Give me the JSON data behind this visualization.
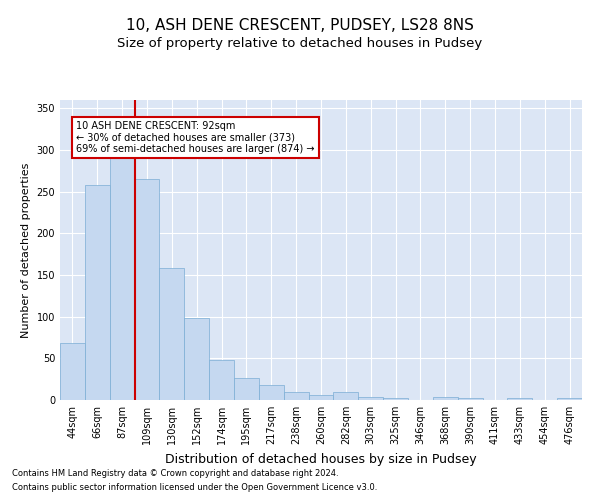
{
  "title": "10, ASH DENE CRESCENT, PUDSEY, LS28 8NS",
  "subtitle": "Size of property relative to detached houses in Pudsey",
  "xlabel": "Distribution of detached houses by size in Pudsey",
  "ylabel": "Number of detached properties",
  "footnote1": "Contains HM Land Registry data © Crown copyright and database right 2024.",
  "footnote2": "Contains public sector information licensed under the Open Government Licence v3.0.",
  "categories": [
    "44sqm",
    "66sqm",
    "87sqm",
    "109sqm",
    "130sqm",
    "152sqm",
    "174sqm",
    "195sqm",
    "217sqm",
    "238sqm",
    "260sqm",
    "282sqm",
    "303sqm",
    "325sqm",
    "346sqm",
    "368sqm",
    "390sqm",
    "411sqm",
    "433sqm",
    "454sqm",
    "476sqm"
  ],
  "values": [
    68,
    258,
    292,
    265,
    158,
    98,
    48,
    27,
    18,
    10,
    6,
    10,
    4,
    3,
    0,
    4,
    3,
    0,
    3,
    0,
    3
  ],
  "bar_color": "#c5d8f0",
  "bar_edge_color": "#7aadd4",
  "vline_x": 2.5,
  "vline_color": "#cc0000",
  "annotation_text": "10 ASH DENE CRESCENT: 92sqm\n← 30% of detached houses are smaller (373)\n69% of semi-detached houses are larger (874) →",
  "annotation_box_color": "white",
  "annotation_box_edge": "#cc0000",
  "ylim": [
    0,
    360
  ],
  "yticks": [
    0,
    50,
    100,
    150,
    200,
    250,
    300,
    350
  ],
  "background_color": "#dce6f5",
  "axes_background": "#dce6f5",
  "grid_color": "white",
  "title_fontsize": 11,
  "subtitle_fontsize": 9.5,
  "xlabel_fontsize": 9,
  "ylabel_fontsize": 8,
  "tick_fontsize": 7,
  "footnote_fontsize": 6
}
